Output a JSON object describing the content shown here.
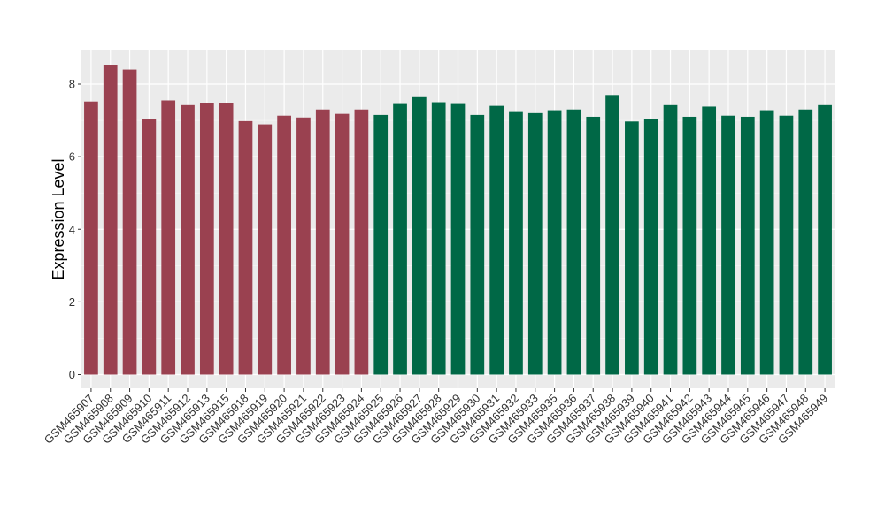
{
  "chart_data": {
    "type": "bar",
    "title": "",
    "xlabel": "",
    "ylabel": "Expression Level",
    "ylim": [
      0,
      8.9
    ],
    "yticks": [
      0,
      2,
      4,
      6,
      8
    ],
    "grid": true,
    "legend": "none",
    "categories": [
      "GSM465907",
      "GSM465908",
      "GSM465909",
      "GSM465910",
      "GSM465911",
      "GSM465912",
      "GSM465913",
      "GSM465915",
      "GSM465918",
      "GSM465919",
      "GSM465920",
      "GSM465921",
      "GSM465922",
      "GSM465923",
      "GSM465924",
      "GSM465925",
      "GSM465926",
      "GSM465927",
      "GSM465928",
      "GSM465929",
      "GSM465930",
      "GSM465931",
      "GSM465932",
      "GSM465933",
      "GSM465935",
      "GSM465936",
      "GSM465937",
      "GSM465938",
      "GSM465939",
      "GSM465940",
      "GSM465941",
      "GSM465942",
      "GSM465943",
      "GSM465944",
      "GSM465945",
      "GSM465946",
      "GSM465947",
      "GSM465948",
      "GSM465949"
    ],
    "values": [
      7.52,
      8.52,
      8.4,
      7.03,
      7.55,
      7.42,
      7.47,
      7.47,
      6.98,
      6.89,
      7.13,
      7.08,
      7.3,
      7.18,
      7.3,
      7.15,
      7.45,
      7.64,
      7.5,
      7.45,
      7.15,
      7.4,
      7.23,
      7.2,
      7.28,
      7.3,
      7.1,
      7.7,
      6.97,
      7.05,
      7.42,
      7.1,
      7.38,
      7.13,
      7.1,
      7.28,
      7.13,
      7.3,
      7.42
    ],
    "group_colors": [
      "#9a4150",
      "#006846"
    ],
    "group_split_index": 15
  }
}
